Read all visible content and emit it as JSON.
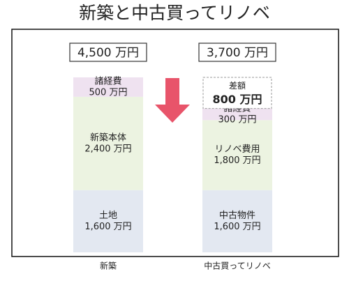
{
  "chart_data": {
    "type": "stacked_bar",
    "title": "新築と中古買ってリノベ",
    "categories": [
      "新築",
      "中古買ってリノベ"
    ],
    "totals": [
      4500,
      3700
    ],
    "total_labels": [
      "4,500 万円",
      "3,700 万円"
    ],
    "series_by_category": [
      [
        {
          "name": "土地",
          "value": 1600,
          "value_label": "1,600 万円",
          "color": "#e3e8f1"
        },
        {
          "name": "新築本体",
          "value": 2400,
          "value_label": "2,400 万円",
          "color": "#ecf3e1"
        },
        {
          "name": "諸経費",
          "value": 500,
          "value_label": "500 万円",
          "color": "#efe2f0"
        }
      ],
      [
        {
          "name": "中古物件",
          "value": 1600,
          "value_label": "1,600 万円",
          "color": "#e3e8f1"
        },
        {
          "name": "リノベ費用",
          "value": 1800,
          "value_label": "1,800 万円",
          "color": "#ecf3e1"
        },
        {
          "name": "諸経費",
          "value": 300,
          "value_label": "300 万円",
          "color": "#efe2f0"
        }
      ]
    ],
    "difference": {
      "name": "差額",
      "value": 800,
      "value_label": "800 万円",
      "color": "#e0001b"
    },
    "arrow_color": "#e8546a"
  }
}
